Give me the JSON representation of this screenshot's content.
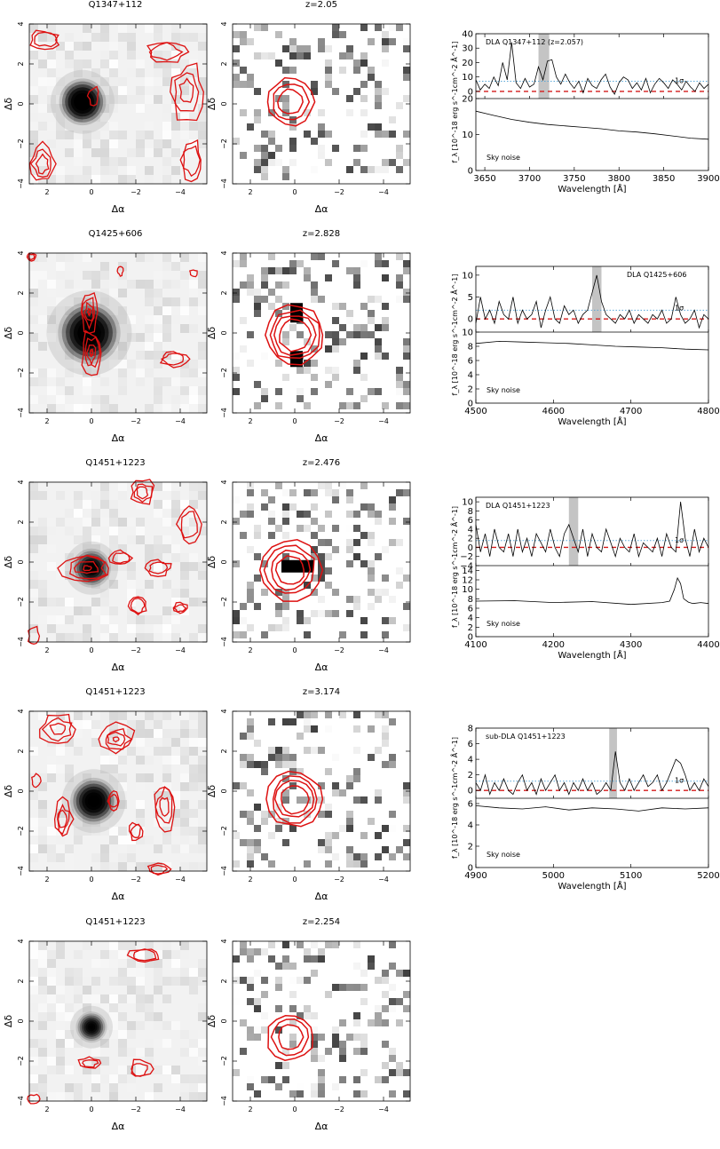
{
  "colors": {
    "contour": "#dd1111",
    "spectrum": "#000000",
    "zero_line": "#d41a1a",
    "sigma_line": "#5aa8d8",
    "highlight": "#c4c4c4"
  },
  "axes": {
    "image_x": "Δα",
    "image_y": "Δδ"
  },
  "panels": [
    {
      "left_title": "Q1347+112",
      "mid_title": "z=2.05",
      "spectrum": {
        "label": "DLA Q1347+112 (z=2.057)",
        "sigma_label": "1σ",
        "sky_label": "Sky noise",
        "ylabel": "f_λ [10^-18 erg s^-1cm^-2 Å^-1]",
        "xlabel": "Wavelength [Å]",
        "xrange": [
          3640,
          3900
        ],
        "xticks": [
          "3650",
          "3700",
          "3750",
          "3800",
          "3850",
          "3900"
        ],
        "top_ticks": [
          "0",
          "10",
          "20",
          "30",
          "40"
        ],
        "bottom_ticks": [
          "0",
          "10",
          "20"
        ],
        "sigma_level": 7,
        "highlight": [
          3710,
          3722
        ]
      }
    },
    {
      "left_title": "Q1425+606",
      "mid_title": "z=2.828",
      "spectrum": {
        "label": "DLA  Q1425+606",
        "sigma_label": "1σ",
        "sky_label": "Sky noise",
        "ylabel": "f_λ [10^-18 erg s^-1cm^-2 Å^-1]",
        "xlabel": "Wavelength [Å]",
        "xrange": [
          4500,
          4800
        ],
        "xticks": [
          "4500",
          "4600",
          "4700",
          "4800"
        ],
        "top_ticks": [
          "0",
          "5",
          "10"
        ],
        "bottom_ticks": [
          "0",
          "2",
          "4",
          "6",
          "8",
          "10"
        ],
        "sigma_level": 2,
        "highlight": [
          4650,
          4662
        ]
      }
    },
    {
      "left_title": "Q1451+1223",
      "mid_title": "z=2.476",
      "spectrum": {
        "label": "DLA Q1451+1223",
        "sigma_label": "1σ",
        "sky_label": "Sky noise",
        "ylabel": "f_λ [10^-18 erg s^-1cm^-2 Å^-1]",
        "xlabel": "Wavelength [Å]",
        "xrange": [
          4100,
          4400
        ],
        "xticks": [
          "4100",
          "4200",
          "4300",
          "4400"
        ],
        "top_ticks": [
          "-4",
          "-2",
          "0",
          "2",
          "4",
          "6",
          "8",
          "10"
        ],
        "bottom_ticks": [
          "0",
          "2",
          "4",
          "6",
          "8",
          "10",
          "12",
          "14"
        ],
        "sigma_level": 1.5,
        "highlight": [
          4220,
          4232
        ]
      }
    },
    {
      "left_title": "Q1451+1223",
      "mid_title": "z=3.174",
      "spectrum": {
        "label": "sub-DLA Q1451+1223",
        "sigma_label": "1σ",
        "sky_label": "Sky noise",
        "ylabel": "f_λ [10^-18 erg s^-1cm^-2 Å^-1]",
        "xlabel": "Wavelength [Å]",
        "xrange": [
          4900,
          5200
        ],
        "xticks": [
          "4900",
          "5000",
          "5100",
          "5200"
        ],
        "top_ticks": [
          "0",
          "2",
          "4",
          "6",
          "8"
        ],
        "bottom_ticks": [
          "0",
          "2",
          "4",
          "6"
        ],
        "sigma_level": 1.2,
        "highlight": [
          5072,
          5082
        ]
      }
    },
    {
      "left_title": "Q1451+1223",
      "mid_title": "z=2.254"
    }
  ],
  "chart_data": [
    {
      "type": "line",
      "title": "DLA Q1347+112 (z=2.057)",
      "xlabel": "Wavelength [Å]",
      "ylabel": "f_λ [10^-18 erg s^-1cm^-2 Å^-1]",
      "xlim": [
        3640,
        3900
      ],
      "ylim": [
        -5,
        40
      ],
      "series": [
        {
          "x": [
            3640,
            3645,
            3650,
            3655,
            3660,
            3665,
            3670,
            3675,
            3680,
            3685,
            3690,
            3695,
            3700,
            3705,
            3710,
            3715,
            3720,
            3725,
            3730,
            3735,
            3740,
            3745,
            3750,
            3755,
            3760,
            3765,
            3770,
            3775,
            3780,
            3785,
            3790,
            3795,
            3800,
            3805,
            3810,
            3815,
            3820,
            3825,
            3830,
            3835,
            3840,
            3845,
            3850,
            3855,
            3860,
            3865,
            3870,
            3875,
            3880,
            3885,
            3890,
            3895,
            3900
          ],
          "values": [
            8,
            1,
            5,
            2,
            10,
            4,
            20,
            8,
            34,
            6,
            2,
            9,
            3,
            5,
            17,
            8,
            21,
            22,
            10,
            5,
            12,
            6,
            2,
            7,
            -1,
            9,
            4,
            2,
            8,
            12,
            3,
            -2,
            6,
            10,
            8,
            2,
            6,
            1,
            9,
            -1,
            5,
            9,
            6,
            2,
            8,
            5,
            1,
            7,
            3,
            0,
            6,
            2,
            5
          ]
        }
      ],
      "sigma_level": 7,
      "highlight": [
        3710,
        3722
      ]
    },
    {
      "type": "line",
      "title": "Sky noise",
      "xlabel": "Wavelength [Å]",
      "xlim": [
        3640,
        3900
      ],
      "ylim": [
        0,
        20
      ],
      "series": [
        {
          "x": [
            3640,
            3660,
            3680,
            3700,
            3720,
            3740,
            3760,
            3780,
            3800,
            3820,
            3840,
            3860,
            3880,
            3900
          ],
          "values": [
            16.5,
            15.3,
            14.2,
            13.4,
            12.8,
            12.4,
            12.0,
            11.6,
            11.0,
            10.7,
            10.2,
            9.6,
            9.0,
            8.7
          ]
        }
      ]
    },
    {
      "type": "line",
      "title": "DLA  Q1425+606",
      "xlabel": "Wavelength [Å]",
      "ylabel": "f_λ [10^-18 erg s^-1cm^-2 Å^-1]",
      "xlim": [
        4500,
        4800
      ],
      "ylim": [
        -3,
        12
      ],
      "series": [
        {
          "x": [
            4500,
            4506,
            4512,
            4518,
            4524,
            4530,
            4536,
            4542,
            4548,
            4554,
            4560,
            4566,
            4572,
            4578,
            4584,
            4590,
            4596,
            4602,
            4608,
            4614,
            4620,
            4626,
            4632,
            4638,
            4644,
            4650,
            4656,
            4662,
            4668,
            4674,
            4680,
            4686,
            4692,
            4698,
            4704,
            4710,
            4716,
            4722,
            4728,
            4734,
            4740,
            4746,
            4752,
            4758,
            4764,
            4770,
            4776,
            4782,
            4788,
            4794,
            4800
          ],
          "values": [
            -1,
            5,
            0,
            2,
            -1,
            4,
            1,
            0,
            5,
            -1,
            2,
            0,
            1,
            4,
            -2,
            2,
            5,
            0,
            -1,
            3,
            1,
            2,
            -1,
            1,
            2,
            6,
            10,
            4,
            1,
            0,
            -1,
            1,
            0,
            2,
            -1,
            1,
            0,
            -1,
            1,
            0,
            2,
            -1,
            0,
            5,
            1,
            -1,
            0,
            2,
            -2,
            1,
            0
          ]
        }
      ],
      "sigma_level": 2,
      "highlight": [
        4650,
        4662
      ]
    },
    {
      "type": "line",
      "title": "Sky noise",
      "xlabel": "Wavelength [Å]",
      "xlim": [
        4500,
        4800
      ],
      "ylim": [
        0,
        10
      ],
      "series": [
        {
          "x": [
            4500,
            4530,
            4560,
            4590,
            4620,
            4650,
            4680,
            4710,
            4740,
            4770,
            4800
          ],
          "values": [
            8.4,
            8.7,
            8.6,
            8.5,
            8.4,
            8.2,
            8.0,
            7.9,
            7.8,
            7.6,
            7.5
          ]
        }
      ]
    },
    {
      "type": "line",
      "title": "DLA Q1451+1223",
      "xlabel": "Wavelength [Å]",
      "ylabel": "f_λ [10^-18 erg s^-1cm^-2 Å^-1]",
      "xlim": [
        4100,
        4400
      ],
      "ylim": [
        -4,
        11
      ],
      "series": [
        {
          "x": [
            4100,
            4106,
            4112,
            4118,
            4124,
            4130,
            4136,
            4142,
            4148,
            4154,
            4160,
            4166,
            4172,
            4178,
            4184,
            4190,
            4196,
            4202,
            4208,
            4214,
            4220,
            4226,
            4232,
            4238,
            4244,
            4250,
            4256,
            4262,
            4268,
            4274,
            4280,
            4286,
            4292,
            4298,
            4304,
            4310,
            4316,
            4322,
            4328,
            4334,
            4340,
            4346,
            4352,
            4358,
            4364,
            4370,
            4376,
            4382,
            4388,
            4394,
            4400
          ],
          "values": [
            5,
            -1,
            3,
            -2,
            4,
            0,
            -1,
            3,
            -2,
            4,
            -1,
            2,
            -2,
            3,
            1,
            -1,
            4,
            0,
            -2,
            3,
            5,
            2,
            -1,
            4,
            -2,
            3,
            0,
            -1,
            4,
            1,
            -2,
            2,
            0,
            -1,
            3,
            -2,
            1,
            0,
            -1,
            2,
            -2,
            3,
            0,
            -1,
            10,
            2,
            -2,
            4,
            -1,
            2,
            0
          ]
        }
      ],
      "sigma_level": 1.5,
      "highlight": [
        4220,
        4232
      ]
    },
    {
      "type": "line",
      "title": "Sky noise",
      "xlabel": "Wavelength [Å]",
      "xlim": [
        4100,
        4400
      ],
      "ylim": [
        0,
        15
      ],
      "series": [
        {
          "x": [
            4100,
            4150,
            4200,
            4250,
            4300,
            4340,
            4350,
            4356,
            4360,
            4364,
            4368,
            4374,
            4380,
            4390,
            4400
          ],
          "values": [
            7.5,
            7.6,
            7.2,
            7.4,
            6.8,
            7.2,
            7.5,
            10,
            12.4,
            11.2,
            8,
            7.3,
            7.0,
            7.2,
            7.0
          ]
        }
      ]
    },
    {
      "type": "line",
      "title": "sub-DLA Q1451+1223",
      "xlabel": "Wavelength [Å]",
      "ylabel": "f_λ [10^-18 erg s^-1cm^-2 Å^-1]",
      "xlim": [
        4900,
        5200
      ],
      "ylim": [
        -1,
        8
      ],
      "series": [
        {
          "x": [
            4900,
            4906,
            4912,
            4918,
            4924,
            4930,
            4936,
            4942,
            4948,
            4954,
            4960,
            4966,
            4972,
            4978,
            4984,
            4990,
            4996,
            5002,
            5008,
            5014,
            5020,
            5026,
            5032,
            5038,
            5044,
            5050,
            5056,
            5062,
            5068,
            5074,
            5080,
            5086,
            5092,
            5098,
            5104,
            5110,
            5116,
            5122,
            5128,
            5134,
            5140,
            5146,
            5152,
            5158,
            5164,
            5170,
            5176,
            5182,
            5188,
            5194,
            5200
          ],
          "values": [
            1,
            0,
            2,
            -0.5,
            1,
            0,
            1.5,
            0,
            -0.5,
            1,
            2,
            0,
            1,
            -0.5,
            1.5,
            0,
            1,
            2,
            0,
            1,
            -0.5,
            1,
            0,
            1.5,
            0,
            1,
            -0.5,
            0,
            1,
            0,
            5,
            1,
            0,
            1.5,
            0,
            1,
            2,
            0.5,
            1,
            2,
            0,
            1,
            2.5,
            4,
            3.5,
            2,
            0,
            1,
            0,
            1.5,
            0.5
          ]
        }
      ],
      "sigma_level": 1.2,
      "highlight": [
        5072,
        5082
      ]
    },
    {
      "type": "line",
      "title": "Sky noise",
      "xlabel": "Wavelength [Å]",
      "xlim": [
        4900,
        5200
      ],
      "ylim": [
        0,
        6.5
      ],
      "series": [
        {
          "x": [
            4900,
            4930,
            4960,
            4990,
            5020,
            5050,
            5080,
            5110,
            5140,
            5170,
            5200
          ],
          "values": [
            5.8,
            5.6,
            5.5,
            5.7,
            5.4,
            5.6,
            5.5,
            5.3,
            5.6,
            5.5,
            5.6
          ]
        }
      ]
    }
  ]
}
